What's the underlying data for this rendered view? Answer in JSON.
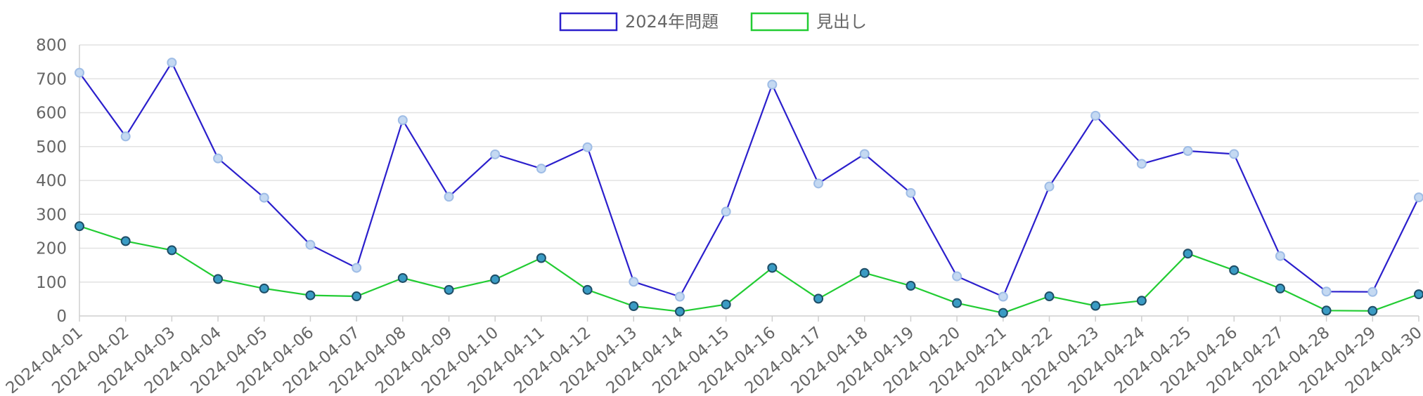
{
  "chart_data": {
    "type": "line",
    "x": [
      "2024-04-01",
      "2024-04-02",
      "2024-04-03",
      "2024-04-04",
      "2024-04-05",
      "2024-04-06",
      "2024-04-07",
      "2024-04-08",
      "2024-04-09",
      "2024-04-10",
      "2024-04-11",
      "2024-04-12",
      "2024-04-13",
      "2024-04-14",
      "2024-04-15",
      "2024-04-16",
      "2024-04-17",
      "2024-04-18",
      "2024-04-19",
      "2024-04-20",
      "2024-04-21",
      "2024-04-22",
      "2024-04-23",
      "2024-04-24",
      "2024-04-25",
      "2024-04-26",
      "2024-04-27",
      "2024-04-28",
      "2024-04-29",
      "2024-04-30"
    ],
    "series": [
      {
        "name": "2024年問題",
        "color": "#2b1fcc",
        "point_fill": "#c4d9f2",
        "point_stroke": "#9fbde6",
        "values": [
          718,
          530,
          748,
          465,
          349,
          210,
          142,
          578,
          352,
          477,
          435,
          498,
          101,
          57,
          308,
          683,
          391,
          478,
          363,
          117,
          57,
          382,
          591,
          449,
          487,
          478,
          177,
          72,
          71,
          350
        ]
      },
      {
        "name": "見出し",
        "color": "#22cc33",
        "point_fill": "#3a9bc4",
        "point_stroke": "#1e4d66",
        "values": [
          265,
          221,
          194,
          109,
          81,
          61,
          58,
          112,
          77,
          108,
          171,
          77,
          29,
          13,
          34,
          142,
          51,
          127,
          89,
          38,
          9,
          58,
          30,
          45,
          184,
          135,
          81,
          16,
          15,
          64
        ]
      }
    ],
    "ylim": [
      0,
      800
    ],
    "yticks": [
      0,
      100,
      200,
      300,
      400,
      500,
      600,
      700,
      800
    ],
    "grid": true,
    "legend_position": "top-center"
  }
}
